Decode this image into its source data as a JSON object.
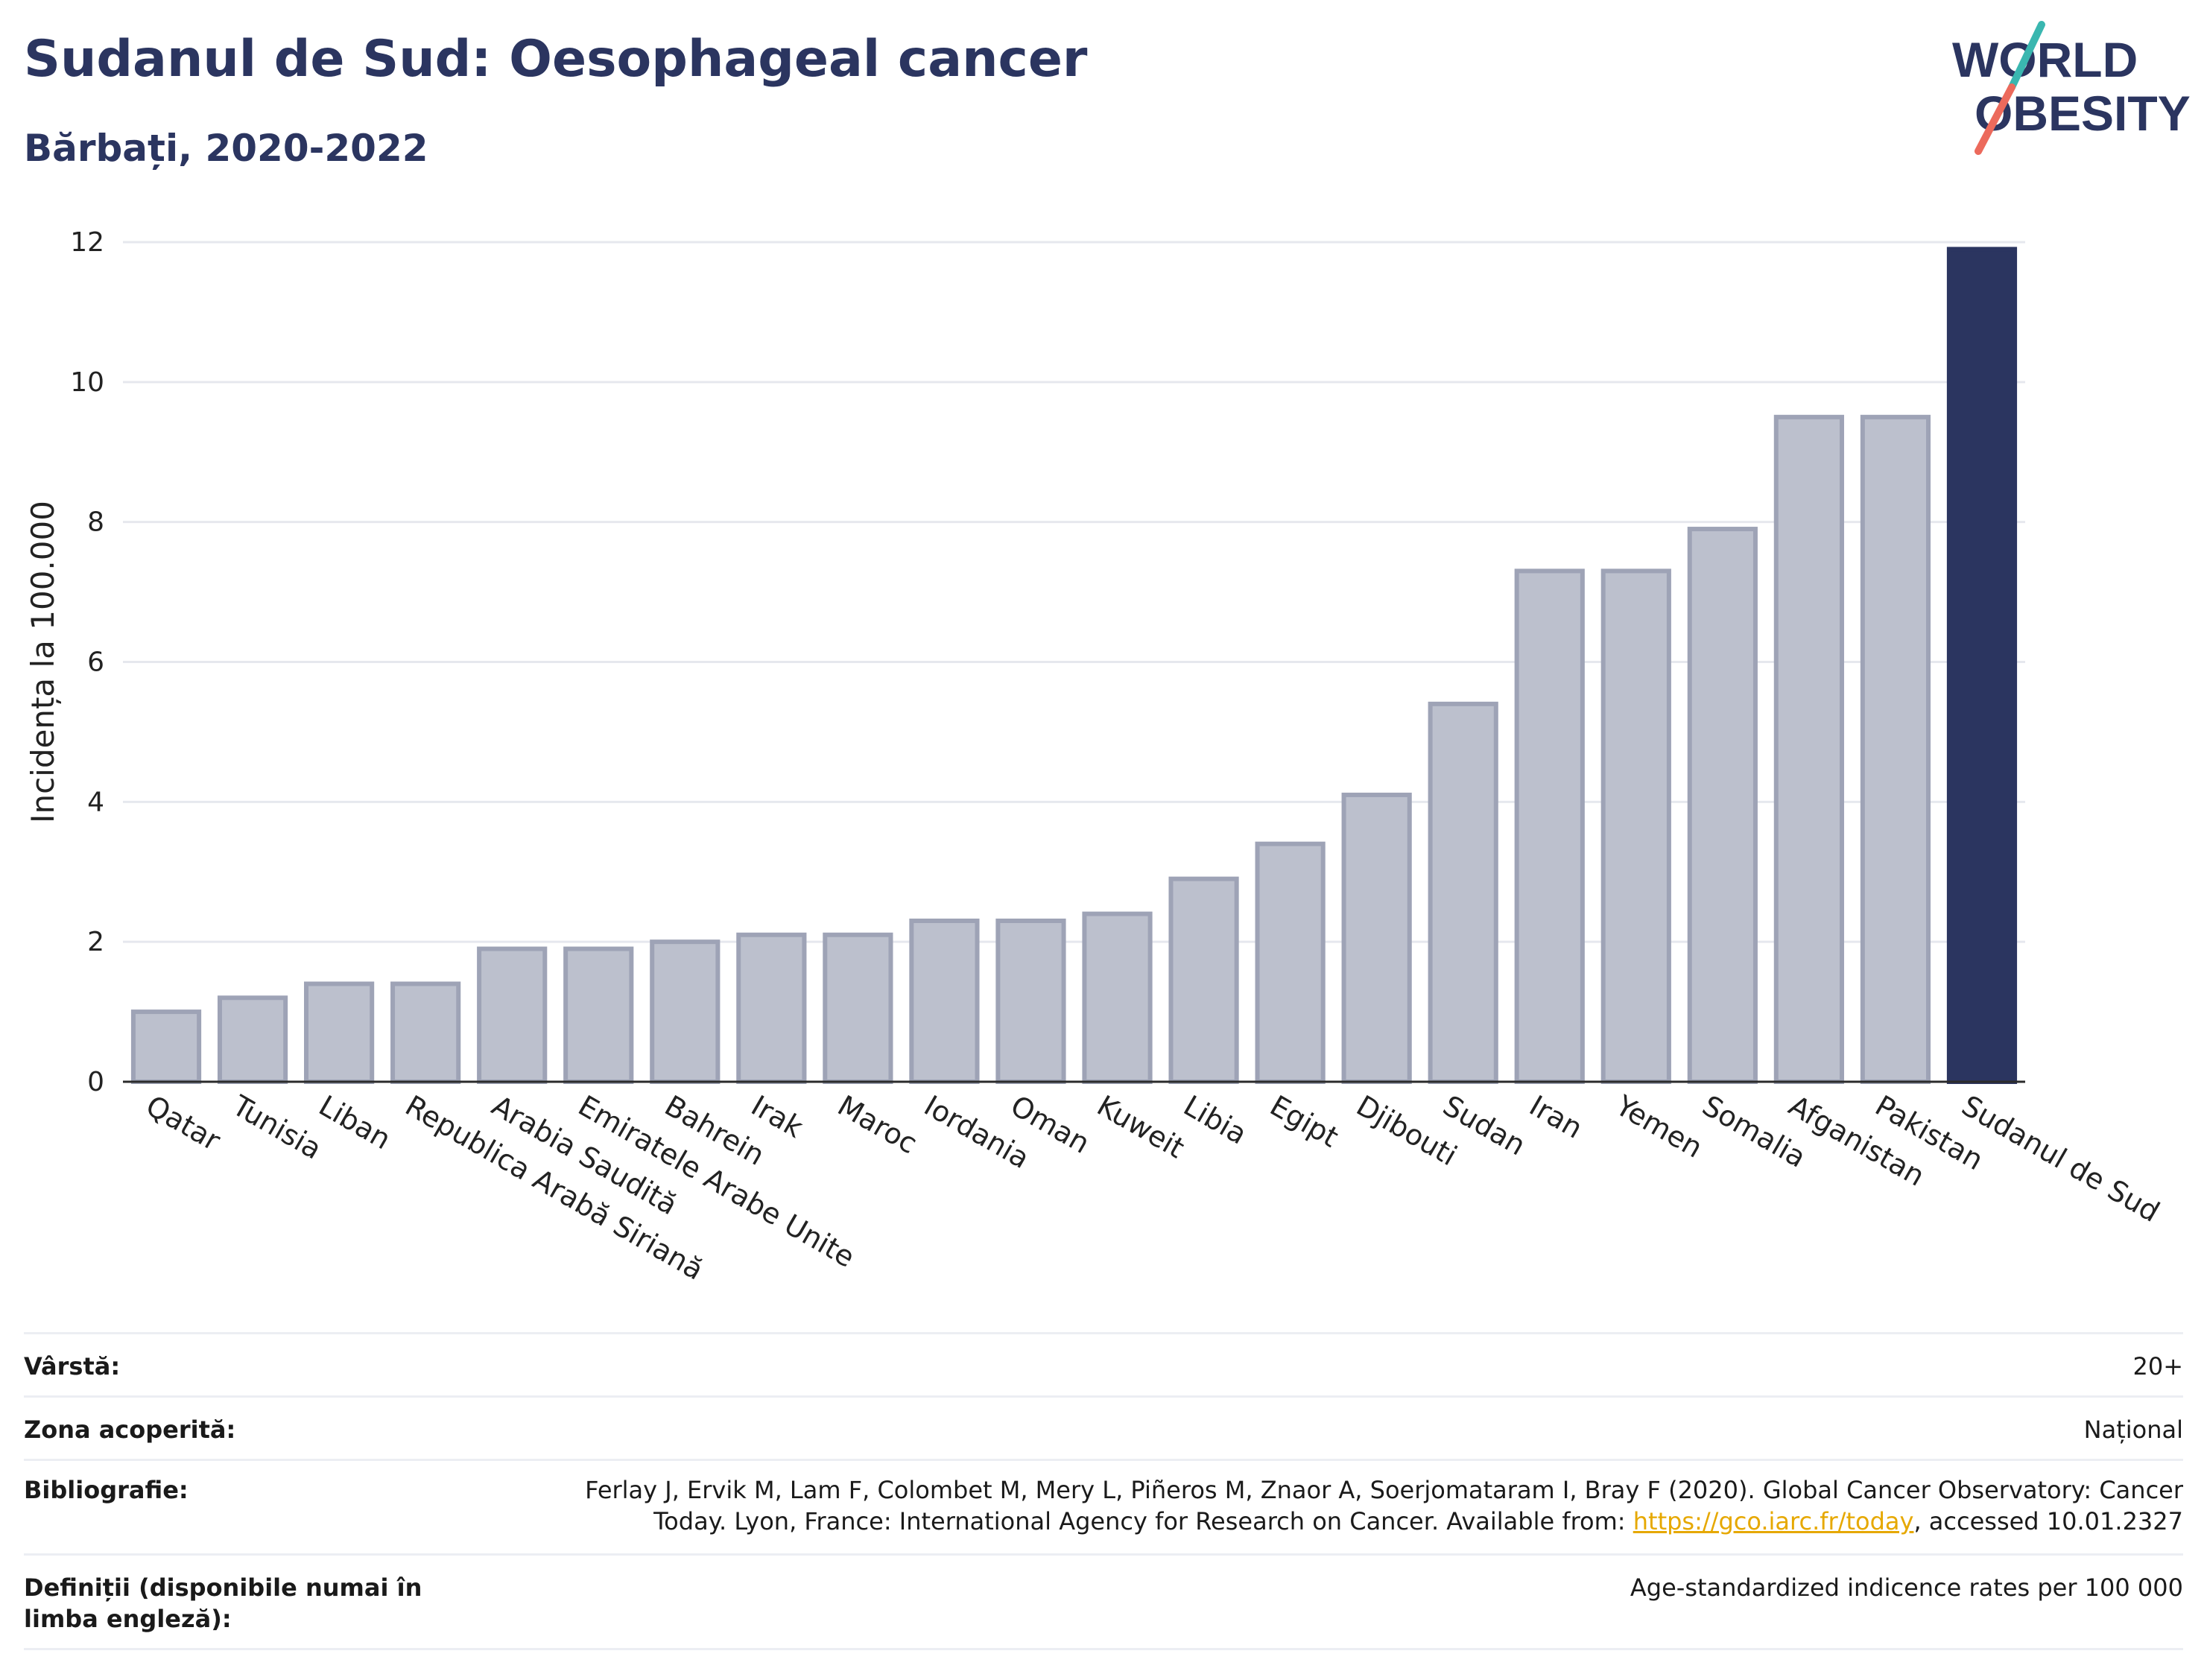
{
  "header": {
    "title": "Sudanul de Sud: Oesophageal cancer",
    "subtitle": "Bărbați, 2020-2022"
  },
  "logo": {
    "line1": "WORLD",
    "line2": "OBESITY"
  },
  "colors": {
    "title": "#2b3560",
    "highlight_bar": "#2b3560",
    "other_bar": "#bcc0cd",
    "other_bar_border": "#9ea3b6"
  },
  "chart_data": {
    "type": "bar",
    "categories": [
      "Qatar",
      "Tunisia",
      "Liban",
      "Republica Arabă Siriană",
      "Arabia Saudită",
      "Emiratele Arabe Unite",
      "Bahrein",
      "Irak",
      "Maroc",
      "Iordania",
      "Oman",
      "Kuweit",
      "Libia",
      "Egipt",
      "Djibouti",
      "Sudan",
      "Iran",
      "Yemen",
      "Somalia",
      "Afganistan",
      "Pakistan",
      "Sudanul de Sud"
    ],
    "values": [
      1.0,
      1.2,
      1.4,
      1.4,
      1.9,
      1.9,
      2.0,
      2.1,
      2.1,
      2.3,
      2.3,
      2.4,
      2.9,
      3.4,
      4.1,
      5.4,
      7.3,
      7.3,
      7.9,
      9.5,
      9.5,
      11.9
    ],
    "highlight": "Sudanul de Sud",
    "ylabel": "Incidența la 100.000",
    "ylim": [
      0,
      12
    ],
    "yticks": [
      "0",
      "2",
      "4",
      "6",
      "8",
      "10",
      "12"
    ],
    "grid": true
  },
  "meta": {
    "age_label": "Vârstă:",
    "age_value": "20+",
    "area_label": "Zona acoperită:",
    "area_value": "Național",
    "biblio_label": "Bibliografie:",
    "biblio_line1": "Ferlay J, Ervik M, Lam F, Colombet M, Mery L, Piñeros M, Znaor A, Soerjomataram I, Bray F (2020). Global Cancer Observatory: Cancer",
    "biblio_line2_pre": "Today. Lyon, France: International Agency for Research on Cancer. Available from: ",
    "biblio_link": "https://gco.iarc.fr/today",
    "biblio_line2_post": ", accessed 10.01.2327",
    "def_label": "Definiții (disponibile numai în limba engleză):",
    "def_value": "Age-standardized indicence rates per 100 000"
  }
}
